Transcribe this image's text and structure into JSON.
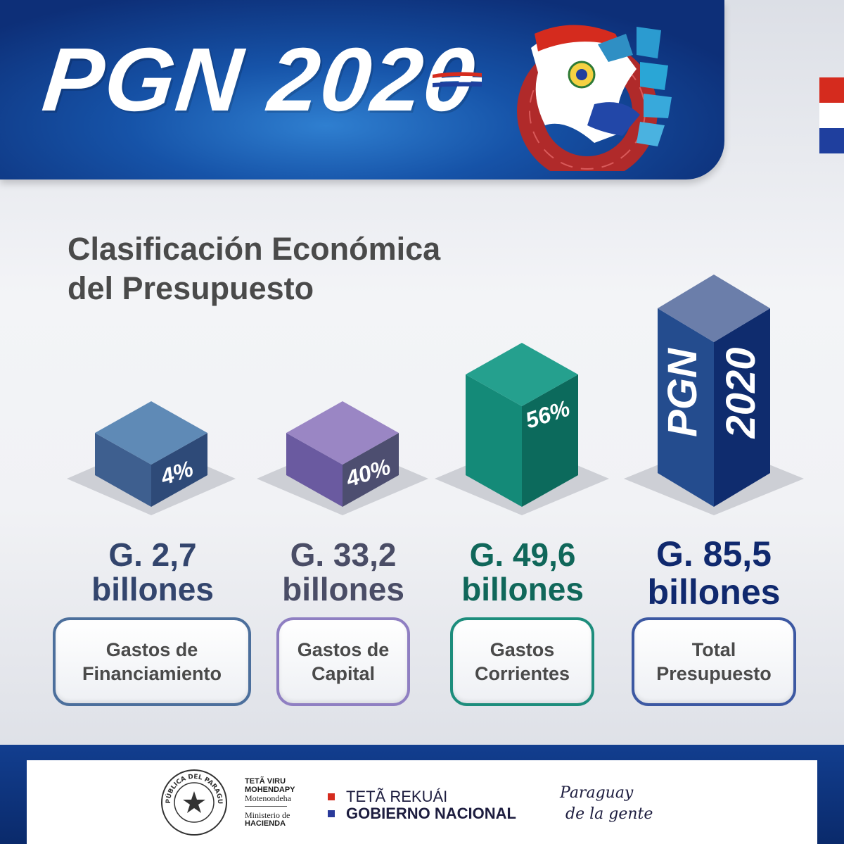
{
  "header": {
    "brand_title": "PGN 2020"
  },
  "heading": {
    "line1": "Clasificación Económica",
    "line2": "del Presupuesto"
  },
  "chart_data": {
    "type": "bar",
    "title": "Clasificación Económica del Presupuesto",
    "categories": [
      "Gastos de Financiamiento",
      "Gastos de Capital",
      "Gastos Corrientes",
      "Total Presupuesto"
    ],
    "series": [
      {
        "values_gs_billones": [
          2.7,
          33.2,
          49.6,
          85.5
        ],
        "percent_labels": [
          "4%",
          "40%",
          "56%",
          "PGN 2020"
        ]
      }
    ],
    "bars": [
      {
        "percent": "4%",
        "amount": "G. 2,7",
        "unit": "billones",
        "label_line1": "Gastos de",
        "label_line2": "Financiamiento",
        "front": "#2e4a78",
        "side": "#3e5f8f",
        "top": "#5f8ab6",
        "text_color": "#33456d"
      },
      {
        "percent": "40%",
        "amount": "G. 33,2",
        "unit": "billones",
        "label_line1": "Gastos de",
        "label_line2": "Capital",
        "front": "#4d4e70",
        "side": "#6a5aa0",
        "top": "#9a86c4",
        "text_color": "#4a4d66"
      },
      {
        "percent": "56%",
        "amount": "G. 49,6",
        "unit": "billones",
        "label_line1": "Gastos",
        "label_line2": "Corrientes",
        "front": "#0c6a5c",
        "side": "#148a78",
        "top": "#25a08e",
        "text_color": "#10675a"
      },
      {
        "percent_line1": "PGN",
        "percent_line2": "2020",
        "amount": "G. 85,5",
        "unit": "billones",
        "label_line1": "Total",
        "label_line2": "Presupuesto",
        "front": "#0f2c6e",
        "side": "#244c8e",
        "top": "#6b7eaa",
        "text_color": "#10296e"
      }
    ],
    "box_border_colors": [
      "#4c6f9c",
      "#8f7fc2",
      "#1d8d7c",
      "#3c58a2"
    ],
    "grid": false,
    "legend": "none"
  },
  "footer": {
    "seal_text": "REPÚBLICA DEL PARAGUAY",
    "ministry_line1": "TETÃ VIRU",
    "ministry_line2": "MOHENDAPY",
    "ministry_line3": "Motenondeha",
    "ministry_line4": "Ministerio de",
    "ministry_line5": "HACIENDA",
    "gov_line1": "TETÃ REKUÁI",
    "gov_line2": "GOBIERNO NACIONAL",
    "slogan_line1": "Paraguay",
    "slogan_line2": "de la gente"
  },
  "colors": {
    "flag_red": "#d52b1e",
    "flag_white": "#ffffff",
    "flag_blue": "#0038a8",
    "header_blue": "#0d2f78"
  }
}
